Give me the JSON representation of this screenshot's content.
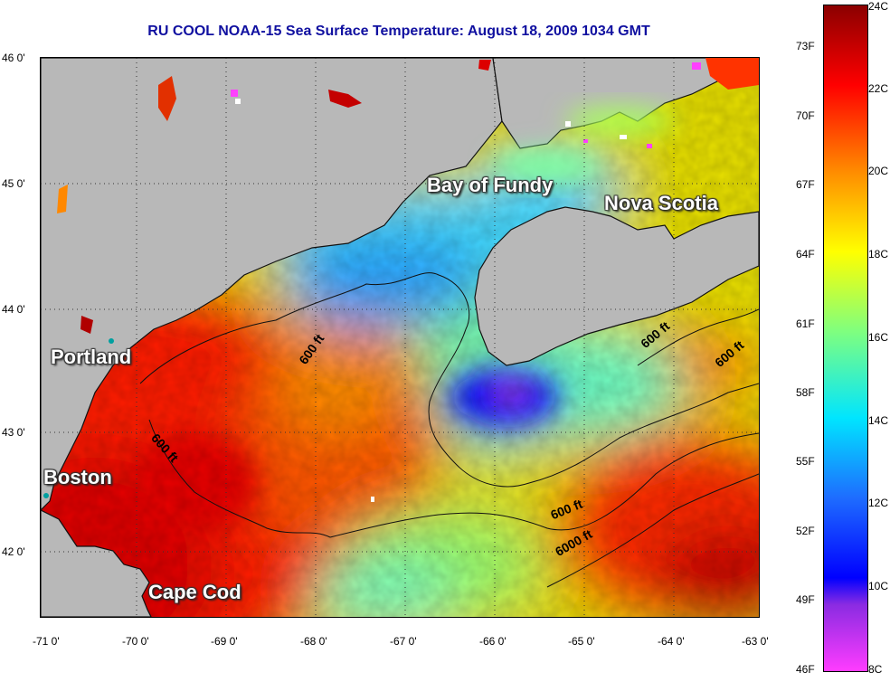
{
  "title": "RU COOL  NOAA-15  Sea Surface Temperature:  August 18, 2009 1034 GMT",
  "places": {
    "bay_of_fundy": "Bay of Fundy",
    "nova_scotia": "Nova Scotia",
    "portland": "Portland",
    "boston": "Boston",
    "cape_cod": "Cape Cod"
  },
  "depth_labels": {
    "d1": "600 ft",
    "d2": "600 ft",
    "d3": "600 ft",
    "d4": "600 ft",
    "d5": "600 ft",
    "d6": "6000 ft"
  },
  "axes": {
    "lat_labels": [
      "46 0'",
      "45 0'",
      "44 0'",
      "43 0'",
      "42 0'"
    ],
    "lon_labels": [
      "-71 0'",
      "-70 0'",
      "-69 0'",
      "-68 0'",
      "-67 0'",
      "-66 0'",
      "-65 0'",
      "-64 0'",
      "-63 0'"
    ],
    "lat_range": [
      41.5,
      46.0
    ],
    "lon_range": [
      -71.0,
      -63.0
    ]
  },
  "colorbar": {
    "fahrenheit": [
      "73F",
      "70F",
      "67F",
      "64F",
      "61F",
      "58F",
      "55F",
      "52F",
      "49F",
      "46F"
    ],
    "celsius": [
      "24C",
      "22C",
      "20C",
      "18C",
      "16C",
      "14C",
      "12C",
      "10C",
      "8C"
    ],
    "colors": [
      "#8b0000",
      "#ff0000",
      "#ff8c00",
      "#ffff00",
      "#7fff7f",
      "#00e5ff",
      "#1e6cff",
      "#0000ff",
      "#8a2be2",
      "#ff3cff"
    ]
  }
}
